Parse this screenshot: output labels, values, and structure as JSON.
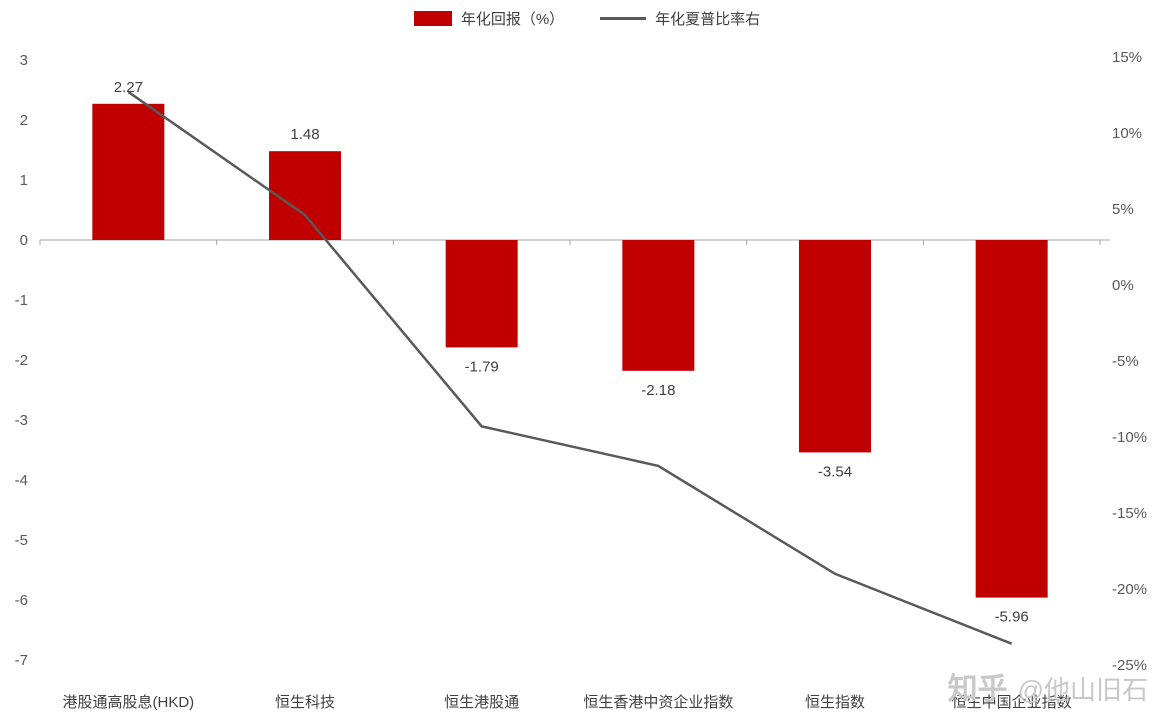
{
  "page": {
    "background": "#ffffff"
  },
  "legend": {
    "bar_label": "年化回报（%）",
    "line_label": "年化夏普比率右"
  },
  "watermark": {
    "brand": "知乎",
    "user": "@他山旧石"
  },
  "chart_data": {
    "type": "bar",
    "subtype": "combo-bar-line",
    "categories": [
      "港股通高股息(HKD)",
      "恒生科技",
      "恒生港股通",
      "恒生香港中资企业指数",
      "恒生指数",
      "恒生中国企业指数"
    ],
    "series": [
      {
        "name": "年化回报（%）",
        "type": "bar",
        "axis": "left",
        "color": "#c00000",
        "values": [
          2.27,
          1.48,
          -1.79,
          -2.18,
          -3.54,
          -5.96
        ]
      },
      {
        "name": "年化夏普比率右",
        "type": "line",
        "axis": "right",
        "color": "#595959",
        "values": [
          12.7,
          4.6,
          -9.3,
          -11.9,
          -19.0,
          -23.6
        ],
        "values_note": "estimated from plotted line against right axis (%)"
      }
    ],
    "bar_labels": [
      "2.27",
      "1.48",
      "-1.79",
      "-2.18",
      "-3.54",
      "-5.96"
    ],
    "left_axis": {
      "min": -7,
      "max": 3,
      "step": 1,
      "ticks": [
        "3",
        "2",
        "1",
        "0",
        "-1",
        "-2",
        "-3",
        "-4",
        "-5",
        "-6",
        "-7"
      ]
    },
    "right_axis": {
      "min": -25,
      "max": 15,
      "step": 5,
      "ticks": [
        "15%",
        "10%",
        "5%",
        "0%",
        "-5%",
        "-10%",
        "-15%",
        "-20%",
        "-25%"
      ]
    },
    "grid": false,
    "legend_position": "top-center",
    "axis_line_color": "#a6a6a6",
    "label_color": "#3f3f3f"
  }
}
